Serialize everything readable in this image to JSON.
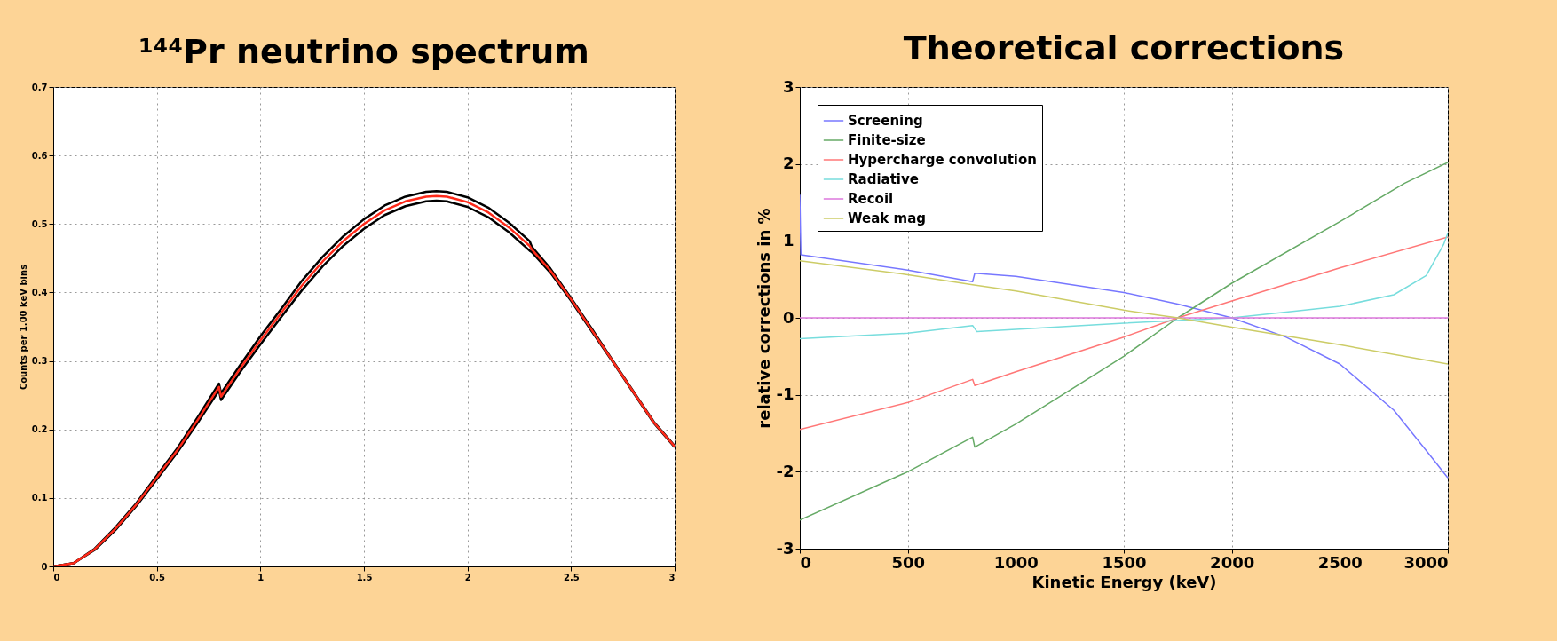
{
  "chart_data": [
    {
      "type": "line",
      "title": "¹⁴⁴Pr neutrino spectrum",
      "ylabel": "Counts per 1.00 keV bins",
      "x": [
        0,
        0.1,
        0.2,
        0.3,
        0.4,
        0.5,
        0.6,
        0.7,
        0.8,
        0.81,
        0.9,
        1.0,
        1.1,
        1.2,
        1.3,
        1.4,
        1.5,
        1.6,
        1.7,
        1.8,
        1.85,
        1.9,
        2.0,
        2.1,
        2.2,
        2.3,
        2.31,
        2.4,
        2.5,
        2.6,
        2.7,
        2.8,
        2.9,
        3.0
      ],
      "series": [
        {
          "color": "#000000",
          "values": [
            0,
            0.005,
            0.026,
            0.057,
            0.092,
            0.133,
            0.173,
            0.219,
            0.267,
            0.253,
            0.293,
            0.336,
            0.376,
            0.417,
            0.452,
            0.482,
            0.507,
            0.527,
            0.54,
            0.547,
            0.548,
            0.547,
            0.539,
            0.524,
            0.502,
            0.475,
            0.467,
            0.435,
            0.392,
            0.347,
            0.301,
            0.256,
            0.211,
            0.176
          ]
        },
        {
          "color": "#000000",
          "values": [
            0,
            0.005,
            0.024,
            0.053,
            0.088,
            0.127,
            0.167,
            0.211,
            0.257,
            0.243,
            0.283,
            0.324,
            0.364,
            0.403,
            0.438,
            0.468,
            0.493,
            0.513,
            0.526,
            0.533,
            0.534,
            0.533,
            0.525,
            0.51,
            0.488,
            0.461,
            0.459,
            0.429,
            0.388,
            0.343,
            0.299,
            0.254,
            0.209,
            0.174
          ]
        },
        {
          "color": "#ff2a1a",
          "values": [
            0,
            0.005,
            0.025,
            0.055,
            0.09,
            0.13,
            0.17,
            0.215,
            0.262,
            0.248,
            0.288,
            0.33,
            0.37,
            0.41,
            0.445,
            0.475,
            0.5,
            0.52,
            0.533,
            0.54,
            0.541,
            0.54,
            0.532,
            0.517,
            0.495,
            0.468,
            0.463,
            0.432,
            0.39,
            0.345,
            0.3,
            0.255,
            0.21,
            0.175
          ]
        }
      ],
      "xlim": [
        0,
        3
      ],
      "xticks": [
        0,
        0.5,
        1,
        1.5,
        2,
        2.5,
        3
      ],
      "ylim": [
        0,
        0.7
      ],
      "yticks": [
        0,
        0.1,
        0.2,
        0.3,
        0.4,
        0.5,
        0.6,
        0.7
      ],
      "grid": true,
      "legend": false
    },
    {
      "type": "line",
      "title": "Theoretical corrections",
      "xlabel": "Kinetic Energy (keV)",
      "ylabel": "relative corrections in %",
      "series": [
        {
          "name": "Screening",
          "color": "#7777ff",
          "x": [
            0,
            5,
            500,
            800,
            810,
            1000,
            1500,
            1750,
            2000,
            2250,
            2500,
            2750,
            2950,
            3000
          ],
          "values": [
            1.6,
            0.82,
            0.62,
            0.47,
            0.58,
            0.54,
            0.33,
            0.18,
            0,
            -0.25,
            -0.6,
            -1.2,
            -1.9,
            -2.08
          ]
        },
        {
          "name": "Finite-size",
          "color": "#66aa66",
          "x": [
            0,
            500,
            800,
            810,
            1000,
            1500,
            1750,
            2000,
            2500,
            2800,
            3000
          ],
          "values": [
            -2.63,
            -2.0,
            -1.55,
            -1.68,
            -1.38,
            -0.5,
            0,
            0.45,
            1.25,
            1.75,
            2.02
          ]
        },
        {
          "name": "Hypercharge convolution",
          "color": "#ff7777",
          "x": [
            0,
            500,
            800,
            810,
            1000,
            1500,
            1750,
            2000,
            2500,
            3000
          ],
          "values": [
            -1.45,
            -1.1,
            -0.8,
            -0.88,
            -0.7,
            -0.25,
            0,
            0.22,
            0.65,
            1.05
          ]
        },
        {
          "name": "Radiative",
          "color": "#77dddd",
          "x": [
            0,
            500,
            800,
            820,
            1000,
            1500,
            2000,
            2300,
            2500,
            2750,
            2900,
            2980,
            3000
          ],
          "values": [
            -0.27,
            -0.2,
            -0.1,
            -0.18,
            -0.15,
            -0.07,
            0,
            0.09,
            0.15,
            0.3,
            0.55,
            0.95,
            1.1
          ]
        },
        {
          "name": "Recoil",
          "color": "#dd77dd",
          "x": [
            0,
            3000
          ],
          "values": [
            0,
            0
          ]
        },
        {
          "name": "Weak mag",
          "color": "#cccc66",
          "x": [
            0,
            500,
            800,
            1000,
            1500,
            1750,
            2000,
            2500,
            3000
          ],
          "values": [
            0.74,
            0.56,
            0.43,
            0.35,
            0.1,
            0,
            -0.12,
            -0.35,
            -0.6
          ]
        }
      ],
      "xlim": [
        0,
        3000
      ],
      "xticks": [
        0,
        500,
        1000,
        1500,
        2000,
        2500,
        3000
      ],
      "ylim": [
        -3,
        3
      ],
      "yticks": [
        -3,
        -2,
        -1,
        0,
        1,
        2,
        3
      ],
      "grid": true,
      "legend": "top left"
    }
  ]
}
